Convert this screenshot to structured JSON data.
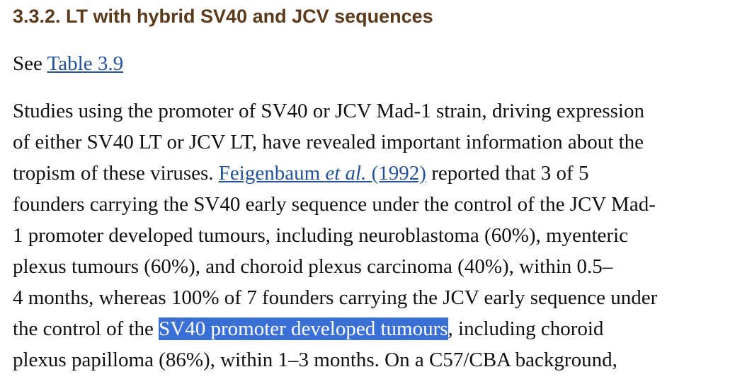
{
  "heading": "3.3.2. LT with hybrid SV40 and JCV sequences",
  "see_line": {
    "prefix": "See ",
    "link": "Table 3.9"
  },
  "paragraph": {
    "lines": [
      [
        "Studies using the promoter of SV40 or JCV Mad-1 strain, driving expression"
      ],
      [
        "of either SV40 LT or JCV LT, have revealed important information about the"
      ],
      [
        "tropism of these viruses. ",
        "Feigenbaum ",
        "et al.",
        " (1992)",
        " reported that 3 of 5"
      ],
      [
        "founders carrying the SV40 early sequence under the control of the JCV Mad-"
      ],
      [
        "1 promoter developed tumours, including neuroblastoma (60%), myenteric"
      ],
      [
        "plexus tumours (60%), and choroid plexus carcinoma (40%), within 0.5–"
      ],
      [
        "4 months, whereas 100% of 7 founders carrying the JCV early sequence under"
      ],
      [
        "the control of the ",
        "SV40 promoter developed tumours",
        ", including choroid"
      ],
      [
        "plexus papilloma (86%), within 1–3 months. On a C57/CBA background,"
      ]
    ]
  }
}
